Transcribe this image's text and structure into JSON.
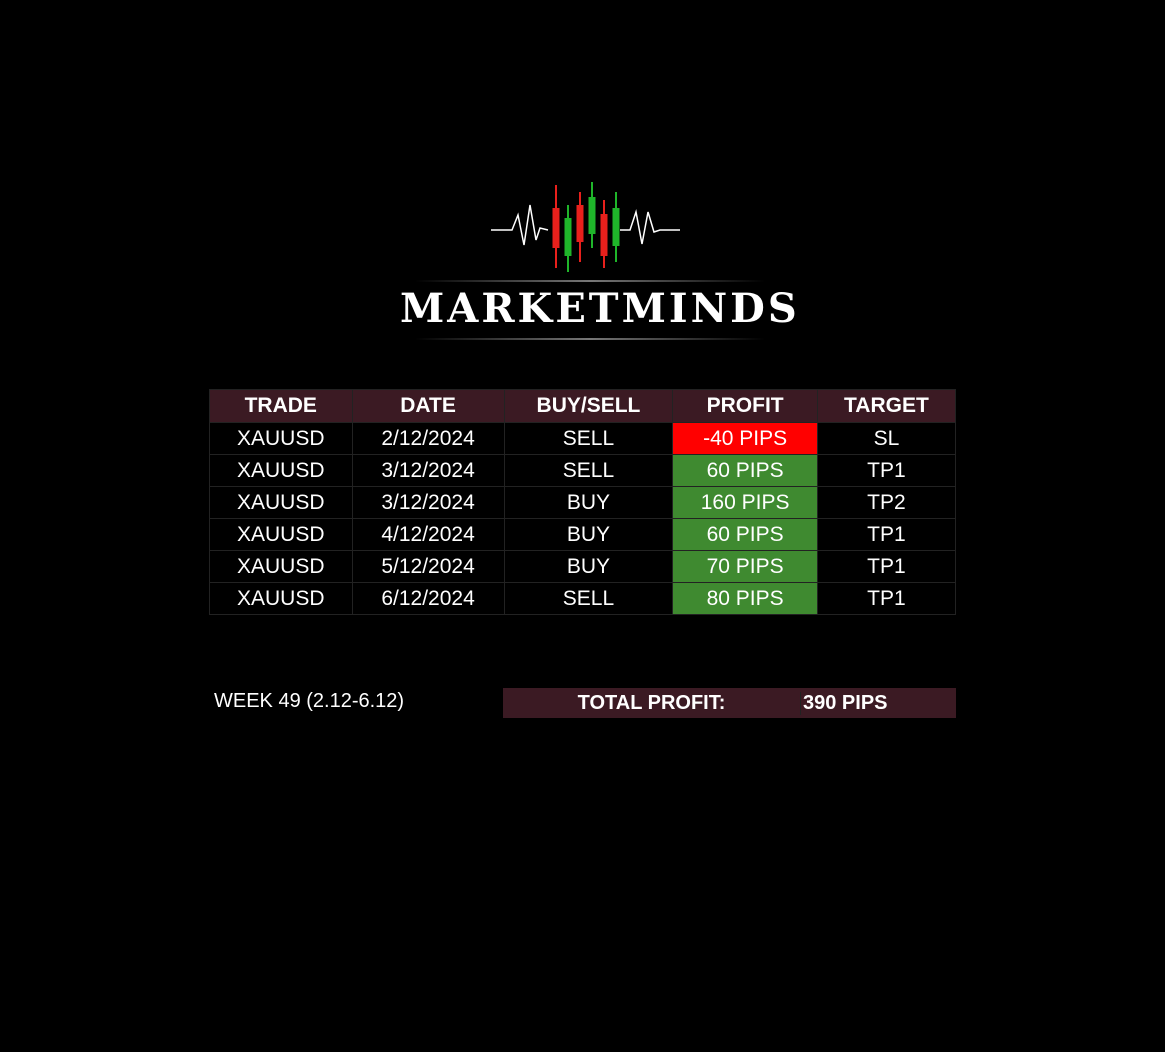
{
  "logo": {
    "text": "MARKETMINDS",
    "colors": {
      "bull": "#1fb52a",
      "bear": "#e8201c"
    }
  },
  "table": {
    "headers": [
      "TRADE",
      "DATE",
      "BUY/SELL",
      "PROFIT",
      "TARGET"
    ],
    "rows": [
      [
        "XAUUSD",
        "2/12/2024",
        "SELL",
        "-40 PIPS",
        "SL"
      ],
      [
        "XAUUSD",
        "3/12/2024",
        "SELL",
        "60 PIPS",
        "TP1"
      ],
      [
        "XAUUSD",
        "3/12/2024",
        "BUY",
        "160 PIPS",
        "TP2"
      ],
      [
        "XAUUSD",
        "4/12/2024",
        "BUY",
        "60 PIPS",
        "TP1"
      ],
      [
        "XAUUSD",
        "5/12/2024",
        "BUY",
        "70 PIPS",
        "TP1"
      ],
      [
        "XAUUSD",
        "6/12/2024",
        "SELL",
        "80 PIPS",
        "TP1"
      ]
    ],
    "colors": {
      "loss": "#ff0000",
      "win": "#3f8a30",
      "header": "#3b1a23"
    }
  },
  "summary": {
    "week": "WEEK 49 (2.12-6.12)",
    "total_label": "TOTAL PROFIT:",
    "total_value": "390 PIPS"
  }
}
